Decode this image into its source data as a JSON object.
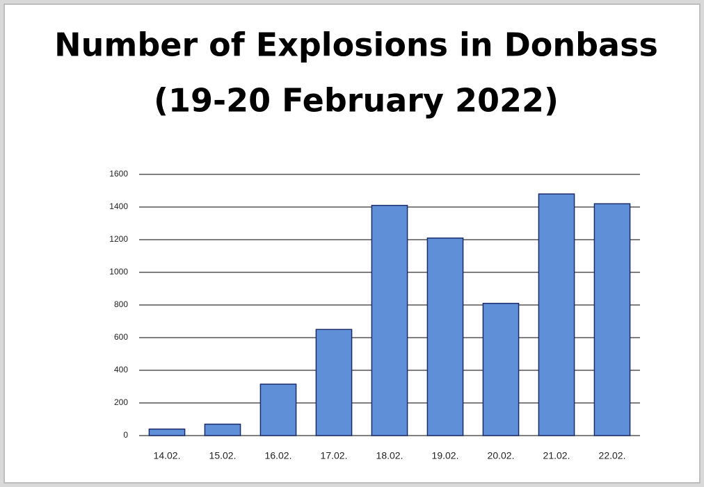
{
  "chart_data": {
    "type": "bar",
    "title": "Number of Explosions in Donbass",
    "subtitle": "(19-20 February 2022)",
    "categories": [
      "14.02.",
      "15.02.",
      "16.02.",
      "17.02.",
      "18.02.",
      "19.02.",
      "20.02.",
      "21.02.",
      "22.02."
    ],
    "values": [
      40,
      70,
      315,
      650,
      1410,
      1210,
      810,
      1480,
      1420
    ],
    "color": "#5f8fd6",
    "ylim": [
      0,
      1600
    ],
    "yticks": [
      0,
      200,
      400,
      600,
      800,
      1000,
      1200,
      1400,
      1600
    ],
    "grid": true
  }
}
